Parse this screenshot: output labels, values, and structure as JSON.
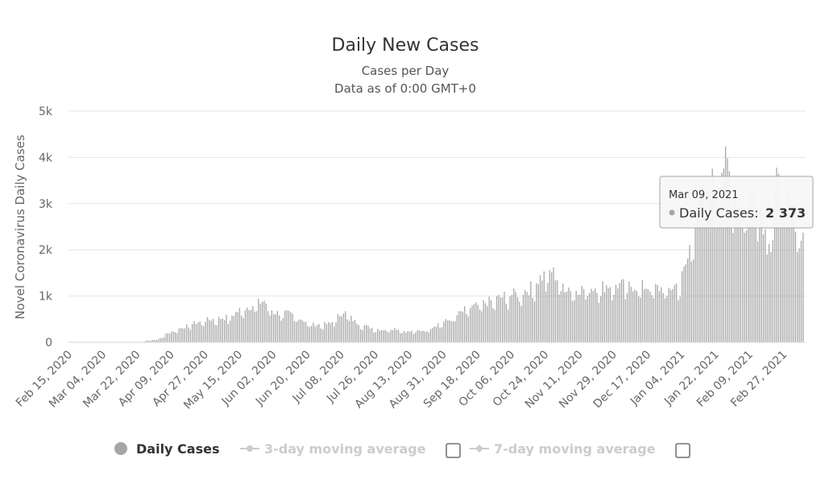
{
  "chart_data": {
    "type": "bar",
    "title": "Daily New Cases",
    "subtitle": "Cases per Day",
    "subtitle2": "Data as of 0:00 GMT+0",
    "ylabel": "Novel Coronavirus Daily Cases",
    "xlabel": "",
    "ylim": [
      0,
      5000
    ],
    "y_ticks": [
      {
        "value": 0,
        "label": "0"
      },
      {
        "value": 1000,
        "label": "1k"
      },
      {
        "value": 2000,
        "label": "2k"
      },
      {
        "value": 3000,
        "label": "3k"
      },
      {
        "value": 4000,
        "label": "4k"
      },
      {
        "value": 5000,
        "label": "5k"
      }
    ],
    "x_start": "2020-02-15",
    "x_end": "2021-03-09",
    "x_tick_labels": [
      "Feb 15, 2020",
      "Mar 04, 2020",
      "Mar 22, 2020",
      "Apr 09, 2020",
      "Apr 27, 2020",
      "May 15, 2020",
      "Jun 02, 2020",
      "Jun 20, 2020",
      "Jul 08, 2020",
      "Jul 26, 2020",
      "Aug 13, 2020",
      "Aug 31, 2020",
      "Sep 18, 2020",
      "Oct 06, 2020",
      "Oct 24, 2020",
      "Nov 11, 2020",
      "Nov 29, 2020",
      "Dec 17, 2020",
      "Jan 04, 2021",
      "Jan 22, 2021",
      "Feb 09, 2021",
      "Feb 27, 2021"
    ],
    "bar_color": "#a6a6a6",
    "grid": true,
    "series": [
      {
        "name": "Daily Cases",
        "anchors": [
          [
            "2020-02-15",
            0
          ],
          [
            "2020-03-25",
            0
          ],
          [
            "2020-03-27",
            40
          ],
          [
            "2020-04-02",
            60
          ],
          [
            "2020-04-05",
            150
          ],
          [
            "2020-04-10",
            250
          ],
          [
            "2020-04-20",
            400
          ],
          [
            "2020-04-27",
            480
          ],
          [
            "2020-05-10",
            550
          ],
          [
            "2020-05-15",
            700
          ],
          [
            "2020-05-22",
            800
          ],
          [
            "2020-05-28",
            900
          ],
          [
            "2020-06-02",
            650
          ],
          [
            "2020-06-10",
            620
          ],
          [
            "2020-06-17",
            500
          ],
          [
            "2020-06-22",
            380
          ],
          [
            "2020-07-02",
            400
          ],
          [
            "2020-07-09",
            680
          ],
          [
            "2020-07-15",
            450
          ],
          [
            "2020-07-22",
            330
          ],
          [
            "2020-07-29",
            270
          ],
          [
            "2020-08-05",
            300
          ],
          [
            "2020-08-12",
            230
          ],
          [
            "2020-08-21",
            260
          ],
          [
            "2020-08-28",
            400
          ],
          [
            "2020-09-04",
            500
          ],
          [
            "2020-09-11",
            700
          ],
          [
            "2020-09-18",
            800
          ],
          [
            "2020-09-25",
            900
          ],
          [
            "2020-10-02",
            1000
          ],
          [
            "2020-10-08",
            1050
          ],
          [
            "2020-10-15",
            1150
          ],
          [
            "2020-10-21",
            1400
          ],
          [
            "2020-10-27",
            1550
          ],
          [
            "2020-11-03",
            1200
          ],
          [
            "2020-11-11",
            1150
          ],
          [
            "2020-11-29",
            1250
          ],
          [
            "2020-12-17",
            1200
          ],
          [
            "2020-12-28",
            1150
          ],
          [
            "2021-01-03",
            1300
          ],
          [
            "2021-01-07",
            1800
          ],
          [
            "2021-01-11",
            2800
          ],
          [
            "2021-01-16",
            3300
          ],
          [
            "2021-01-22",
            3500
          ],
          [
            "2021-01-26",
            3900
          ],
          [
            "2021-02-01",
            3300
          ],
          [
            "2021-02-05",
            3000
          ],
          [
            "2021-02-09",
            3100
          ],
          [
            "2021-02-14",
            3200
          ],
          [
            "2021-02-18",
            2100
          ],
          [
            "2021-02-23",
            3400
          ],
          [
            "2021-03-01",
            3100
          ],
          [
            "2021-03-05",
            2700
          ],
          [
            "2021-03-09",
            2373
          ]
        ]
      }
    ],
    "tooltip": {
      "date": "Mar 09, 2021",
      "label": "Daily Cases:",
      "value": "2 373"
    },
    "legend": [
      {
        "label": "Daily Cases",
        "active": true
      },
      {
        "label": "3-day moving average",
        "active": false
      },
      {
        "label": "7-day moving average",
        "active": false
      }
    ]
  }
}
